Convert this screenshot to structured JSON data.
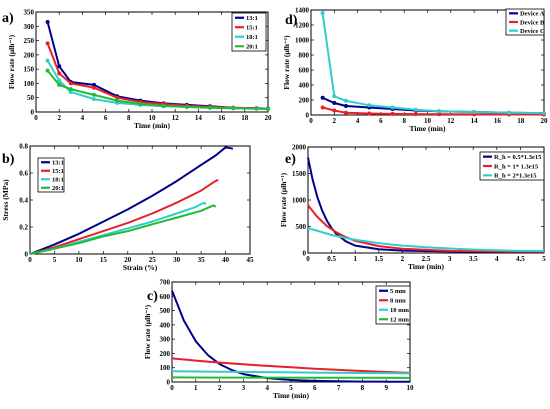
{
  "chart_data": [
    {
      "id": "a",
      "panel_label": "a)",
      "type": "line",
      "xlabel": "Time (min)",
      "ylabel": "Flow rate (μlh⁻¹)",
      "xlim": [
        0,
        20
      ],
      "ylim": [
        0,
        350
      ],
      "xticks": [
        0,
        2,
        4,
        6,
        8,
        10,
        12,
        14,
        16,
        18,
        20
      ],
      "yticks": [
        0,
        50,
        100,
        150,
        200,
        250,
        300,
        350
      ],
      "legend": "top-right",
      "series": [
        {
          "name": "13:1",
          "color": "#00008b",
          "x": [
            1,
            2,
            3,
            5,
            7,
            9,
            11,
            13,
            15,
            17,
            19,
            20
          ],
          "y": [
            315,
            160,
            105,
            95,
            55,
            40,
            30,
            25,
            20,
            15,
            13,
            12
          ]
        },
        {
          "name": "15:1",
          "color": "#e8202a",
          "x": [
            1,
            2,
            3,
            5,
            7,
            9,
            11,
            13,
            15,
            17,
            19,
            20
          ],
          "y": [
            240,
            135,
            100,
            85,
            50,
            35,
            28,
            22,
            18,
            15,
            13,
            12
          ]
        },
        {
          "name": "18:1",
          "color": "#33cccc",
          "x": [
            1,
            2,
            3,
            5,
            7,
            9,
            11,
            13,
            15,
            17,
            19,
            20
          ],
          "y": [
            180,
            110,
            70,
            45,
            32,
            25,
            20,
            18,
            15,
            13,
            12,
            11
          ]
        },
        {
          "name": "20:1",
          "color": "#22bb33",
          "x": [
            1,
            2,
            3,
            5,
            7,
            9,
            11,
            13,
            15,
            17,
            19,
            20
          ],
          "y": [
            145,
            95,
            80,
            60,
            40,
            28,
            22,
            18,
            15,
            13,
            12,
            11
          ]
        }
      ]
    },
    {
      "id": "b",
      "panel_label": "b)",
      "type": "line",
      "xlabel": "Strain (%)",
      "ylabel": "Stress (MPa)",
      "xlim": [
        0,
        45
      ],
      "ylim": [
        0,
        0.8
      ],
      "xticks": [
        0,
        5,
        10,
        15,
        20,
        25,
        30,
        35,
        40,
        45
      ],
      "yticks": [
        0,
        0.2,
        0.4,
        0.6,
        0.8
      ],
      "legend": "top-left",
      "series": [
        {
          "name": "13:1",
          "color": "#00008b",
          "x": [
            0,
            5,
            10,
            15,
            20,
            25,
            30,
            35,
            38,
            40,
            41.5
          ],
          "y": [
            0,
            0.07,
            0.15,
            0.24,
            0.33,
            0.43,
            0.54,
            0.66,
            0.73,
            0.79,
            0.78
          ]
        },
        {
          "name": "15:1",
          "color": "#e8202a",
          "x": [
            0,
            5,
            10,
            15,
            20,
            25,
            30,
            35,
            37.5,
            38.5
          ],
          "y": [
            0,
            0.05,
            0.11,
            0.17,
            0.23,
            0.3,
            0.38,
            0.47,
            0.53,
            0.55
          ]
        },
        {
          "name": "18:1",
          "color": "#33cccc",
          "x": [
            0,
            5,
            10,
            15,
            20,
            25,
            30,
            34,
            35.5,
            36
          ],
          "y": [
            0,
            0.04,
            0.09,
            0.14,
            0.19,
            0.24,
            0.3,
            0.35,
            0.38,
            0.37
          ]
        },
        {
          "name": "20:1",
          "color": "#22bb33",
          "x": [
            0,
            5,
            10,
            15,
            20,
            25,
            30,
            35,
            37.5,
            38
          ],
          "y": [
            0,
            0.04,
            0.08,
            0.13,
            0.17,
            0.22,
            0.27,
            0.32,
            0.36,
            0.35
          ]
        }
      ]
    },
    {
      "id": "c",
      "panel_label": "c)",
      "type": "line",
      "xlabel": "Time (min)",
      "ylabel": "Flow rate (μlh⁻¹)",
      "xlim": [
        0,
        10
      ],
      "ylim": [
        0,
        700
      ],
      "xticks": [
        0,
        1,
        2,
        3,
        4,
        5,
        6,
        7,
        8,
        9,
        10
      ],
      "yticks": [
        0,
        100,
        200,
        300,
        400,
        500,
        600,
        700
      ],
      "legend": "top-right",
      "series": [
        {
          "name": "5 mm",
          "color": "#00008b",
          "x": [
            0,
            0.5,
            1,
            1.5,
            2,
            2.5,
            3,
            4,
            5,
            6,
            7,
            8,
            9,
            10
          ],
          "y": [
            640,
            430,
            285,
            190,
            125,
            85,
            55,
            27,
            14,
            8,
            5,
            3,
            2,
            2
          ]
        },
        {
          "name": "8 mm",
          "color": "#e8202a",
          "x": [
            0,
            1,
            2,
            3,
            4,
            5,
            6,
            7,
            8,
            9,
            10
          ],
          "y": [
            165,
            150,
            136,
            124,
            113,
            103,
            93,
            85,
            77,
            70,
            64
          ]
        },
        {
          "name": "10 mm",
          "color": "#33cccc",
          "x": [
            0,
            2,
            4,
            6,
            8,
            10
          ],
          "y": [
            75,
            72,
            69,
            66,
            63,
            60
          ]
        },
        {
          "name": "12 mm",
          "color": "#22bb33",
          "x": [
            0,
            2,
            4,
            6,
            8,
            10
          ],
          "y": [
            32,
            31,
            31,
            30,
            30,
            29
          ]
        }
      ]
    },
    {
      "id": "d",
      "panel_label": "d)",
      "type": "line",
      "xlabel": "Time (min)",
      "ylabel": "Flow rate (μlh⁻¹)",
      "xlim": [
        0,
        20
      ],
      "ylim": [
        0,
        1400
      ],
      "xticks": [
        0,
        2,
        4,
        6,
        8,
        10,
        12,
        14,
        16,
        18,
        20
      ],
      "yticks": [
        0,
        200,
        400,
        600,
        800,
        1000,
        1200,
        1400
      ],
      "legend": "top-right",
      "series": [
        {
          "name": "Device A",
          "color": "#00008b",
          "x": [
            1,
            2,
            3,
            5,
            7,
            9,
            11,
            14,
            17,
            20
          ],
          "y": [
            230,
            160,
            120,
            100,
            80,
            60,
            50,
            40,
            30,
            25
          ]
        },
        {
          "name": "Device B",
          "color": "#e8202a",
          "x": [
            1,
            2,
            3,
            5,
            7,
            9,
            11,
            14,
            17,
            20
          ],
          "y": [
            100,
            60,
            30,
            20,
            15,
            12,
            10,
            8,
            7,
            6
          ]
        },
        {
          "name": "Device C",
          "color": "#33cccc",
          "x": [
            1,
            2,
            3,
            5,
            7,
            9,
            11,
            14,
            17,
            20
          ],
          "y": [
            1360,
            250,
            190,
            130,
            100,
            70,
            50,
            40,
            30,
            25
          ]
        }
      ]
    },
    {
      "id": "e",
      "panel_label": "e)",
      "type": "line",
      "xlabel": "Time (min)",
      "ylabel": "Flow rate (μlh⁻¹)",
      "xlim": [
        0,
        5
      ],
      "ylim": [
        0,
        2000
      ],
      "xticks": [
        0,
        0.5,
        1,
        1.5,
        2,
        2.5,
        3,
        3.5,
        4,
        4.5,
        5
      ],
      "yticks": [
        0,
        500,
        1000,
        1500,
        2000
      ],
      "legend": "top-right",
      "series": [
        {
          "name": "R_h = 0.5*1.3e15",
          "color": "#00008b",
          "x": [
            0,
            0.1,
            0.2,
            0.3,
            0.4,
            0.5,
            0.6,
            0.8,
            1,
            1.5,
            2,
            3,
            4,
            5
          ],
          "y": [
            1800,
            1380,
            1050,
            800,
            610,
            470,
            360,
            220,
            140,
            70,
            45,
            30,
            25,
            22
          ]
        },
        {
          "name": "R_h = 1* 1.3e15",
          "color": "#e8202a",
          "x": [
            0,
            0.2,
            0.4,
            0.6,
            0.8,
            1,
            1.5,
            2,
            3,
            4,
            5
          ],
          "y": [
            900,
            680,
            510,
            390,
            300,
            230,
            130,
            80,
            40,
            28,
            22
          ]
        },
        {
          "name": "R_h = 2*1.3e15",
          "color": "#33cccc",
          "x": [
            0,
            0.5,
            1,
            1.5,
            2,
            2.5,
            3,
            3.5,
            4,
            4.5,
            5
          ],
          "y": [
            470,
            340,
            250,
            185,
            140,
            110,
            85,
            65,
            50,
            40,
            35
          ]
        }
      ]
    }
  ]
}
